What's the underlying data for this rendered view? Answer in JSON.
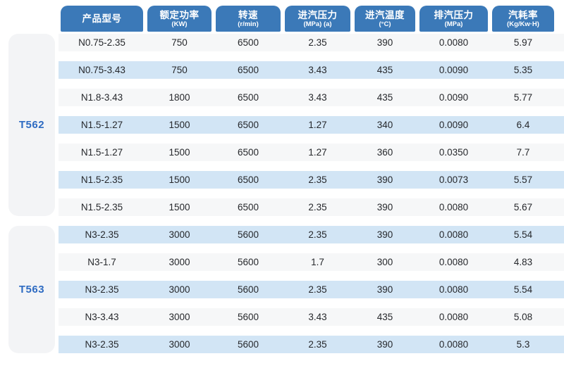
{
  "colors": {
    "header_bg": "#3b79b8",
    "header_text": "#ffffff",
    "row_light": "#f6f7f8",
    "row_blue": "#d2e5f5",
    "group_block_bg": "#f3f4f6",
    "group_label_text": "#2e6bc2",
    "data_text": "#26282c"
  },
  "table": {
    "columns": [
      {
        "label": "产品型号",
        "sub": ""
      },
      {
        "label": "额定功率",
        "sub": "(KW)"
      },
      {
        "label": "转速",
        "sub": "(r/min)"
      },
      {
        "label": "进汽压力",
        "sub": "(MPa) (a)"
      },
      {
        "label": "进汽温度",
        "sub": "(°C)"
      },
      {
        "label": "排汽压力",
        "sub": "(MPa)"
      },
      {
        "label": "汽耗率",
        "sub": "(Kg/Kw·H)"
      }
    ],
    "groups": [
      {
        "name": "T562",
        "rows": [
          [
            "N0.75-2.35",
            "750",
            "6500",
            "2.35",
            "390",
            "0.0080",
            "5.97"
          ],
          [
            "N0.75-3.43",
            "750",
            "6500",
            "3.43",
            "435",
            "0.0090",
            "5.35"
          ],
          [
            "N1.8-3.43",
            "1800",
            "6500",
            "3.43",
            "435",
            "0.0090",
            "5.77"
          ],
          [
            "N1.5-1.27",
            "1500",
            "6500",
            "1.27",
            "340",
            "0.0090",
            "6.4"
          ],
          [
            "N1.5-1.27",
            "1500",
            "6500",
            "1.27",
            "360",
            "0.0350",
            "7.7"
          ],
          [
            "N1.5-2.35",
            "1500",
            "6500",
            "2.35",
            "390",
            "0.0073",
            "5.57"
          ],
          [
            "N1.5-2.35",
            "1500",
            "6500",
            "2.35",
            "390",
            "0.0080",
            "5.67"
          ]
        ]
      },
      {
        "name": "T563",
        "rows": [
          [
            "N3-2.35",
            "3000",
            "5600",
            "2.35",
            "390",
            "0.0080",
            "5.54"
          ],
          [
            "N3-1.7",
            "3000",
            "5600",
            "1.7",
            "300",
            "0.0080",
            "4.83"
          ],
          [
            "N3-2.35",
            "3000",
            "5600",
            "2.35",
            "390",
            "0.0080",
            "5.54"
          ],
          [
            "N3-3.43",
            "3000",
            "5600",
            "3.43",
            "435",
            "0.0080",
            "5.08"
          ],
          [
            "N3-2.35",
            "3000",
            "5600",
            "2.35",
            "390",
            "0.0080",
            "5.3"
          ]
        ]
      }
    ]
  }
}
